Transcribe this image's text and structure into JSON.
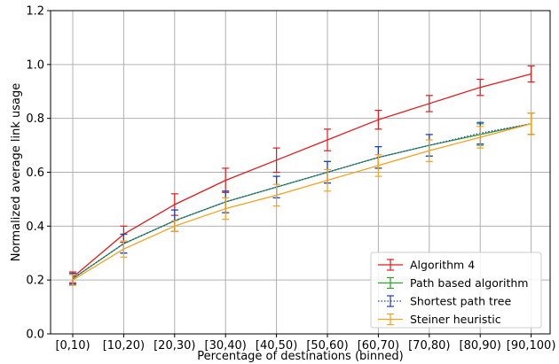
{
  "chart_data": {
    "type": "line",
    "title": "",
    "xlabel": "Percentage of destinations (binned)",
    "ylabel": "Normalized average link usage",
    "categories": [
      "[0,10)",
      "[10,20)",
      "[20,30)",
      "[30,40)",
      "[40,50)",
      "[50,60)",
      "[60,70)",
      "[70,80)",
      "[80,90)",
      "[90,100)"
    ],
    "ylim": [
      0.0,
      1.2
    ],
    "yticks": [
      "0.0",
      "0.2",
      "0.4",
      "0.6",
      "0.8",
      "1.0",
      "1.2"
    ],
    "grid": true,
    "legend_position": "bottom-right",
    "error_bars": true,
    "series": [
      {
        "name": "Algorithm 4",
        "color": "#e41a1c",
        "line_style": "solid",
        "values": [
          0.21,
          0.37,
          0.48,
          0.57,
          0.645,
          0.72,
          0.795,
          0.855,
          0.915,
          0.965
        ],
        "errors": [
          0.02,
          0.03,
          0.04,
          0.045,
          0.045,
          0.04,
          0.035,
          0.03,
          0.03,
          0.03
        ]
      },
      {
        "name": "Path based algorithm",
        "color": "#2ca02c",
        "line_style": "solid",
        "values": [
          0.205,
          0.335,
          0.42,
          0.49,
          0.545,
          0.6,
          0.655,
          0.7,
          0.74,
          0.78
        ],
        "errors": [
          0.02,
          0.035,
          0.04,
          0.04,
          0.04,
          0.04,
          0.04,
          0.04,
          0.04,
          0.04
        ]
      },
      {
        "name": "Shortest path tree",
        "color": "#1f3bd6",
        "line_style": "dotted",
        "values": [
          0.205,
          0.335,
          0.42,
          0.49,
          0.545,
          0.6,
          0.655,
          0.7,
          0.745,
          0.78
        ],
        "errors": [
          0.02,
          0.035,
          0.04,
          0.04,
          0.04,
          0.04,
          0.04,
          0.04,
          0.04,
          0.04
        ]
      },
      {
        "name": "Steiner heuristic",
        "color": "#f4a11c",
        "line_style": "solid",
        "values": [
          0.2,
          0.315,
          0.4,
          0.465,
          0.515,
          0.57,
          0.625,
          0.68,
          0.73,
          0.78
        ],
        "errors": [
          0.02,
          0.03,
          0.02,
          0.04,
          0.04,
          0.04,
          0.04,
          0.04,
          0.04,
          0.04
        ]
      }
    ]
  }
}
